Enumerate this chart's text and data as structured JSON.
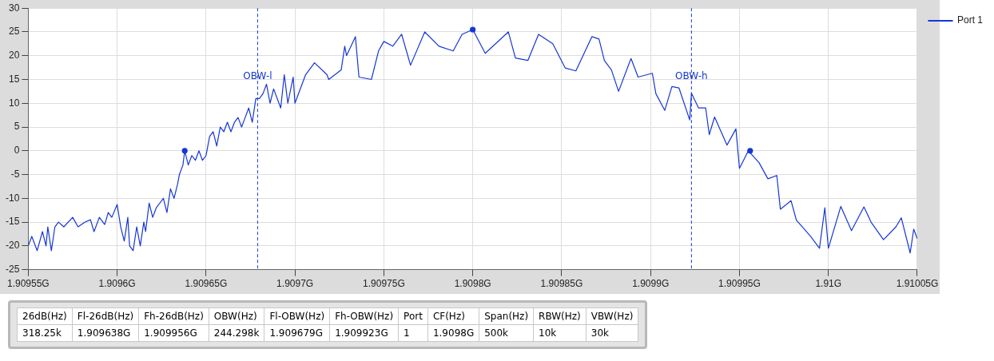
{
  "chart_data": {
    "type": "line",
    "legend": "top right",
    "grid": true,
    "marker": "none",
    "xlim": [
      1.90955,
      1.91005
    ],
    "xticks": [
      {
        "value": 1.90955,
        "label": "1.90955G"
      },
      {
        "value": 1.9096,
        "label": "1.9096G"
      },
      {
        "value": 1.90965,
        "label": "1.90965G"
      },
      {
        "value": 1.9097,
        "label": "1.9097G"
      },
      {
        "value": 1.90975,
        "label": "1.90975G"
      },
      {
        "value": 1.9098,
        "label": "1.9098G"
      },
      {
        "value": 1.90985,
        "label": "1.90985G"
      },
      {
        "value": 1.9099,
        "label": "1.9099G"
      },
      {
        "value": 1.90995,
        "label": "1.90995G"
      },
      {
        "value": 1.91,
        "label": "1.91G"
      },
      {
        "value": 1.91005,
        "label": "1.91005G"
      }
    ],
    "ylim": [
      -25,
      30
    ],
    "yticks": [
      -25,
      -20,
      -15,
      -10,
      -5,
      0,
      5,
      10,
      15,
      20,
      25,
      30
    ],
    "series": [
      {
        "name": "Port 1",
        "color": "#1537d4",
        "x": [
          1.90955,
          1.909552,
          1.909555,
          1.909558,
          1.90956,
          1.909561,
          1.909563,
          1.909565,
          1.909567,
          1.90957,
          1.909575,
          1.909578,
          1.909582,
          1.909585,
          1.909587,
          1.90959,
          1.909593,
          1.909595,
          1.909597,
          1.9096,
          1.909602,
          1.909604,
          1.909606,
          1.909607,
          1.909609,
          1.909611,
          1.909613,
          1.909615,
          1.909616,
          1.909618,
          1.90962,
          1.909622,
          1.909624,
          1.909626,
          1.909628,
          1.90963,
          1.909632,
          1.909634,
          1.909635,
          1.909637,
          1.909638,
          1.90964,
          1.909642,
          1.909644,
          1.909646,
          1.909648,
          1.90965,
          1.909652,
          1.909654,
          1.909656,
          1.909658,
          1.90966,
          1.909662,
          1.909664,
          1.909666,
          1.909668,
          1.90967,
          1.909672,
          1.909674,
          1.909676,
          1.909678,
          1.90968,
          1.909682,
          1.909684,
          1.909686,
          1.909688,
          1.90969,
          1.909692,
          1.909694,
          1.909696,
          1.909699,
          1.9097,
          1.909706,
          1.909711,
          1.909718,
          1.909719,
          1.909726,
          1.909728,
          1.909729,
          1.909734,
          1.909736,
          1.909743,
          1.909747,
          1.90975,
          1.909755,
          1.90976,
          1.909765,
          1.909773,
          1.909781,
          1.909789,
          1.909794,
          1.9098,
          1.909807,
          1.90982,
          1.909824,
          1.909831,
          1.909837,
          1.909845,
          1.909852,
          1.909858,
          1.909867,
          1.909871,
          1.909874,
          1.909878,
          1.909882,
          1.909889,
          1.909893,
          1.909901,
          1.909903,
          1.909908,
          1.909912,
          1.909916,
          1.909922,
          1.909923,
          1.909927,
          1.909931,
          1.909933,
          1.909936,
          1.909943,
          1.909948,
          1.90995,
          1.909955,
          1.909961,
          1.909966,
          1.909971,
          1.909973,
          1.909979,
          1.909982,
          1.90999,
          1.909995,
          1.909998,
          1.91,
          1.910007,
          1.910013,
          1.91002,
          1.910024,
          1.910031,
          1.910038,
          1.910041,
          1.910046,
          1.910048,
          1.91005
        ],
        "values": [
          -20,
          -18,
          -21,
          -17,
          -20,
          -16,
          -21,
          -16,
          -15,
          -16,
          -14,
          -16,
          -15,
          -14.5,
          -17,
          -14,
          -15.5,
          -13,
          -14,
          -11.3,
          -16,
          -19,
          -14,
          -20,
          -21,
          -16,
          -20,
          -15,
          -17,
          -11,
          -14,
          -12,
          -11,
          -10,
          -13,
          -8,
          -10,
          -7,
          -5,
          -3,
          0,
          -3,
          -1,
          -2,
          0,
          -2,
          -1,
          3,
          4,
          1,
          5,
          4,
          6,
          4,
          6,
          7,
          5,
          7,
          9,
          6,
          11,
          11,
          12,
          14,
          10,
          13,
          11,
          9,
          16,
          10,
          15.5,
          10,
          16,
          18.5,
          16,
          15,
          17,
          22,
          20,
          24,
          15.5,
          15,
          21,
          23,
          22,
          24.5,
          18,
          25,
          22,
          21,
          24.5,
          25.5,
          20.5,
          25,
          19.5,
          19,
          24.5,
          22.5,
          17.4,
          16.8,
          24,
          23.5,
          19,
          17,
          12.5,
          19.4,
          15.5,
          16.3,
          12,
          8.5,
          13.5,
          13.2,
          6.5,
          12.1,
          9,
          9,
          3.4,
          7.1,
          1.2,
          4.6,
          -3.7,
          0,
          -2.5,
          -5.9,
          -5.2,
          -12.3,
          -10.5,
          -14.6,
          -18,
          -20.5,
          -12,
          -20.5,
          -11.7,
          -16.8,
          -11.8,
          -15,
          -18.7,
          -16,
          -14.1,
          -21.5,
          -16.5,
          -18.5
        ]
      },
      {
        "type": "scatter",
        "marker": "circle",
        "color": "#1537d4",
        "x": [
          1.909638,
          1.9098,
          1.909956
        ],
        "values": [
          0,
          25.5,
          0
        ]
      }
    ],
    "ref_lines": [
      {
        "axis": "x",
        "value": 1.909679,
        "label": "OBW-l",
        "color": "#1537d4",
        "line_style": "dashed"
      },
      {
        "axis": "x",
        "value": 1.909923,
        "label": "OBW-h",
        "color": "#1537d4",
        "line_style": "dashed"
      }
    ],
    "annotations": [
      "26dB(Hz)",
      "Fl-26dB(Hz)",
      "Fh-26dB(Hz)",
      "OBW(Hz)",
      "Fl-OBW(Hz)",
      "Fh-OBW(Hz)",
      "Port",
      "CF(Hz)",
      "Span(Hz)",
      "RBW(Hz)",
      "VBW(Hz)",
      "318.25k",
      "1.909638G",
      "1.909956G",
      "244.298k",
      "1.909679G",
      "1.909923G",
      "1",
      "1.9098G",
      "500k",
      "10k",
      "30k"
    ]
  }
}
